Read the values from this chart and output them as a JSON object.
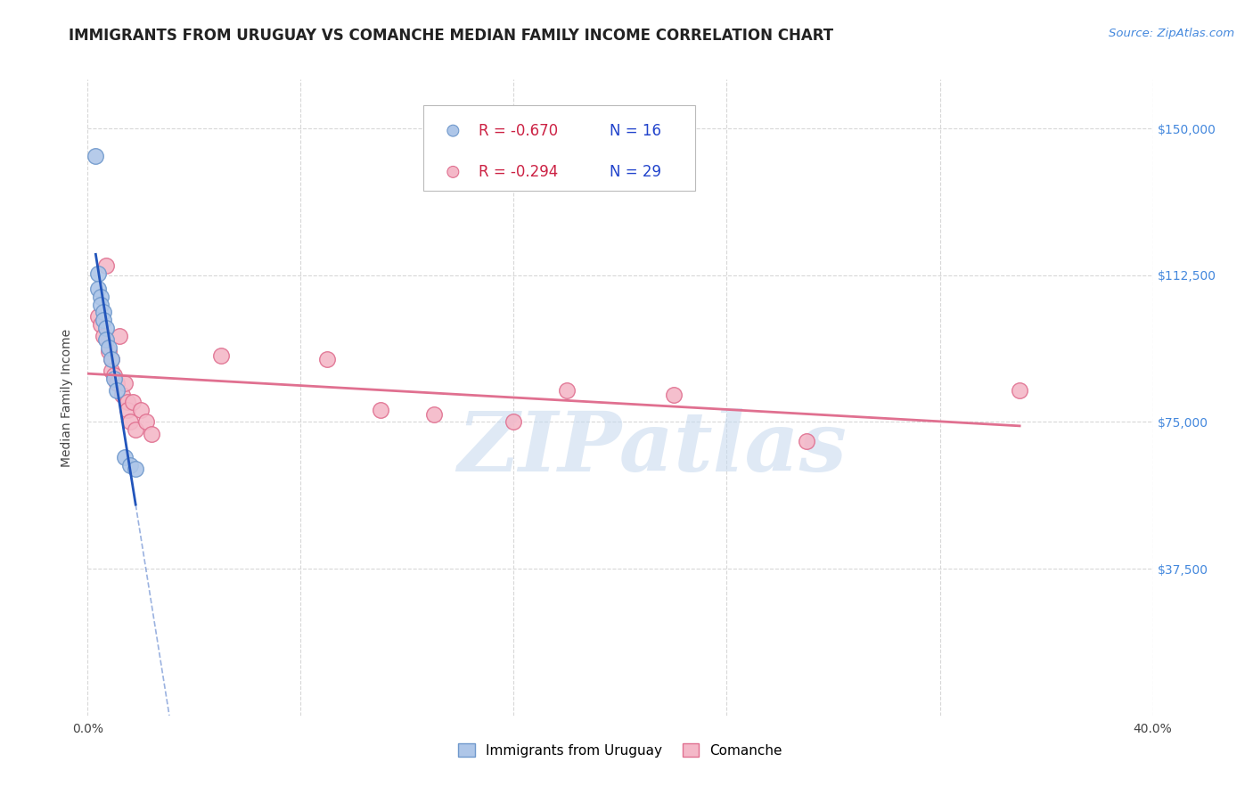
{
  "title": "IMMIGRANTS FROM URUGUAY VS COMANCHE MEDIAN FAMILY INCOME CORRELATION CHART",
  "source": "Source: ZipAtlas.com",
  "ylabel": "Median Family Income",
  "xlim": [
    0.0,
    0.4
  ],
  "ylim": [
    0,
    162500
  ],
  "yticks": [
    0,
    37500,
    75000,
    112500,
    150000
  ],
  "ytick_labels": [
    "",
    "$37,500",
    "$75,000",
    "$112,500",
    "$150,000"
  ],
  "xticks": [
    0.0,
    0.08,
    0.16,
    0.24,
    0.32,
    0.4
  ],
  "xtick_labels": [
    "0.0%",
    "",
    "",
    "",
    "",
    "40.0%"
  ],
  "background_color": "#ffffff",
  "grid_color": "#d8d8d8",
  "uruguay_color": "#aec6e8",
  "comanche_color": "#f4b8c8",
  "uruguay_edge_color": "#7099cc",
  "comanche_edge_color": "#e07090",
  "regression_uruguay_color": "#2255bb",
  "regression_comanche_color": "#e07090",
  "legend_R_uruguay": "-0.670",
  "legend_N_uruguay": "16",
  "legend_R_comanche": "-0.294",
  "legend_N_comanche": "29",
  "watermark": "ZIPatlas",
  "uruguay_points_x": [
    0.003,
    0.004,
    0.004,
    0.005,
    0.005,
    0.006,
    0.006,
    0.007,
    0.007,
    0.008,
    0.009,
    0.01,
    0.011,
    0.014,
    0.016,
    0.018
  ],
  "uruguay_points_y": [
    143000,
    113000,
    109000,
    107000,
    105000,
    103000,
    101000,
    99000,
    96000,
    94000,
    91000,
    86000,
    83000,
    66000,
    64000,
    63000
  ],
  "comanche_points_x": [
    0.004,
    0.005,
    0.006,
    0.007,
    0.008,
    0.009,
    0.009,
    0.01,
    0.011,
    0.012,
    0.013,
    0.014,
    0.015,
    0.015,
    0.016,
    0.017,
    0.018,
    0.02,
    0.022,
    0.024,
    0.05,
    0.09,
    0.11,
    0.13,
    0.16,
    0.18,
    0.22,
    0.27,
    0.35
  ],
  "comanche_points_y": [
    102000,
    100000,
    97000,
    115000,
    93000,
    91000,
    88000,
    87000,
    85000,
    97000,
    82000,
    85000,
    80000,
    78000,
    75000,
    80000,
    73000,
    78000,
    75000,
    72000,
    92000,
    91000,
    78000,
    77000,
    75000,
    83000,
    82000,
    70000,
    83000
  ],
  "title_fontsize": 12,
  "axis_label_fontsize": 10,
  "tick_fontsize": 10,
  "legend_fontsize": 12
}
